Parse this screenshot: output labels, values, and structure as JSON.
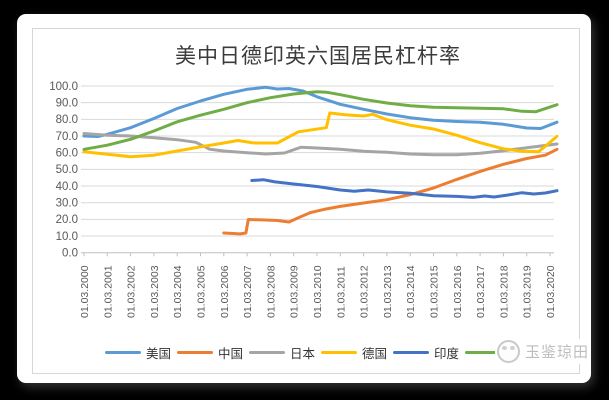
{
  "watermark": {
    "text": "玉鉴琼田",
    "logo": "panda-logo"
  },
  "chart_data": {
    "type": "line",
    "title": "美中日德印英六国居民杠杆率",
    "grid": true,
    "legend_position": "bottom",
    "y_axis": {
      "tick_labels": [
        "100.0",
        "90.0",
        "80.0",
        "70.0",
        "60.0",
        "50.0",
        "40.0",
        "30.0",
        "20.0",
        "10.0",
        "0.0"
      ],
      "tick_values": [
        100,
        90,
        80,
        70,
        60,
        50,
        40,
        30,
        20,
        10,
        0
      ],
      "min": 0,
      "max": 100
    },
    "x_axis": {
      "start_year": 2000,
      "tick_labels": [
        "01.03.2000",
        "01.03.2001",
        "01.03.2002",
        "01.03.2003",
        "01.03.2004",
        "01.03.2005",
        "01.03.2006",
        "01.03.2007",
        "01.03.2008",
        "01.03.2009",
        "01.03.2010",
        "01.03.2011",
        "01.03.2012",
        "01.03.2013",
        "01.03.2014",
        "01.03.2015",
        "01.03.2016",
        "01.03.2017",
        "01.03.2018",
        "01.03.2019",
        "01.03.2020"
      ]
    },
    "series": [
      {
        "id": "us",
        "name": "美国",
        "color": "#5B9BD5",
        "points": [
          [
            2000,
            70
          ],
          [
            2000.6,
            69.7
          ],
          [
            2001,
            71
          ],
          [
            2002,
            75
          ],
          [
            2003,
            80.5
          ],
          [
            2004,
            86.5
          ],
          [
            2005,
            91
          ],
          [
            2006,
            95
          ],
          [
            2007,
            98
          ],
          [
            2007.8,
            99.2
          ],
          [
            2008.3,
            98.2
          ],
          [
            2008.8,
            98.5
          ],
          [
            2009.4,
            97
          ],
          [
            2010,
            93.5
          ],
          [
            2011,
            89
          ],
          [
            2012,
            86
          ],
          [
            2013,
            83.2
          ],
          [
            2014,
            81
          ],
          [
            2015,
            79.5
          ],
          [
            2016,
            78.7
          ],
          [
            2017,
            78.2
          ],
          [
            2018,
            77
          ],
          [
            2019,
            74.8
          ],
          [
            2019.6,
            74.5
          ],
          [
            2020.3,
            78.3
          ]
        ]
      },
      {
        "id": "china",
        "name": "中国",
        "color": "#ED7D31",
        "points": [
          [
            2006,
            11.8
          ],
          [
            2006.7,
            11.3
          ],
          [
            2006.95,
            11.8
          ],
          [
            2007.05,
            19.9
          ],
          [
            2007.8,
            19.6
          ],
          [
            2008.3,
            19.3
          ],
          [
            2008.8,
            18.4
          ],
          [
            2009.2,
            21
          ],
          [
            2009.7,
            24
          ],
          [
            2010.3,
            26
          ],
          [
            2011,
            27.8
          ],
          [
            2012,
            29.8
          ],
          [
            2013,
            31.8
          ],
          [
            2014,
            34.8
          ],
          [
            2015,
            38.8
          ],
          [
            2016,
            44
          ],
          [
            2017,
            48.8
          ],
          [
            2018,
            53
          ],
          [
            2019,
            56.5
          ],
          [
            2019.8,
            58.5
          ],
          [
            2020.3,
            62
          ]
        ]
      },
      {
        "id": "japan",
        "name": "日本",
        "color": "#A5A5A5",
        "points": [
          [
            2000,
            71.5
          ],
          [
            2001,
            70.5
          ],
          [
            2002,
            70
          ],
          [
            2003,
            69
          ],
          [
            2004,
            67.8
          ],
          [
            2004.8,
            66.2
          ],
          [
            2005.4,
            62
          ],
          [
            2006,
            61
          ],
          [
            2007,
            60
          ],
          [
            2007.8,
            59.2
          ],
          [
            2008.6,
            59.8
          ],
          [
            2009.3,
            63.2
          ],
          [
            2010,
            62.8
          ],
          [
            2011,
            62
          ],
          [
            2012,
            60.8
          ],
          [
            2013,
            60.2
          ],
          [
            2014,
            59.2
          ],
          [
            2015,
            58.8
          ],
          [
            2016,
            58.8
          ],
          [
            2017,
            59.6
          ],
          [
            2018,
            61.2
          ],
          [
            2019,
            63
          ],
          [
            2020.3,
            65.2
          ]
        ]
      },
      {
        "id": "germany",
        "name": "德国",
        "color": "#FFC000",
        "points": [
          [
            2000,
            60.5
          ],
          [
            2001,
            59
          ],
          [
            2002,
            57.6
          ],
          [
            2003,
            58.5
          ],
          [
            2004,
            61
          ],
          [
            2005,
            63.5
          ],
          [
            2006,
            65.8
          ],
          [
            2006.6,
            67.3
          ],
          [
            2007.3,
            65.8
          ],
          [
            2008.3,
            65.8
          ],
          [
            2009.2,
            72.5
          ],
          [
            2010.4,
            75
          ],
          [
            2010.55,
            83.8
          ],
          [
            2011.2,
            82.8
          ],
          [
            2012,
            82
          ],
          [
            2012.4,
            83
          ],
          [
            2013,
            79.8
          ],
          [
            2014,
            76.5
          ],
          [
            2015,
            74.2
          ],
          [
            2016,
            70.5
          ],
          [
            2017,
            66
          ],
          [
            2018,
            62.3
          ],
          [
            2018.8,
            60.8
          ],
          [
            2019.5,
            60.5
          ],
          [
            2019.9,
            65
          ],
          [
            2020.3,
            69.8
          ]
        ]
      },
      {
        "id": "india",
        "name": "印度",
        "color": "#4472C4",
        "points": [
          [
            2007.2,
            43.3
          ],
          [
            2007.7,
            43.8
          ],
          [
            2008.2,
            42.5
          ],
          [
            2009,
            41.2
          ],
          [
            2010,
            39.7
          ],
          [
            2011,
            37.6
          ],
          [
            2011.6,
            36.9
          ],
          [
            2012.2,
            37.6
          ],
          [
            2013,
            36.5
          ],
          [
            2014,
            35.7
          ],
          [
            2015,
            34.2
          ],
          [
            2016,
            33.8
          ],
          [
            2016.7,
            33.2
          ],
          [
            2017.2,
            34
          ],
          [
            2017.6,
            33.4
          ],
          [
            2018.2,
            34.6
          ],
          [
            2018.8,
            36
          ],
          [
            2019.3,
            35.2
          ],
          [
            2019.8,
            35.8
          ],
          [
            2020.3,
            37.2
          ]
        ]
      },
      {
        "id": "uk",
        "name": "英国",
        "color": "#70AD47",
        "points": [
          [
            2000,
            62
          ],
          [
            2001,
            64.5
          ],
          [
            2002,
            68
          ],
          [
            2003,
            73
          ],
          [
            2004,
            78.5
          ],
          [
            2005,
            82.5
          ],
          [
            2006,
            86
          ],
          [
            2007,
            90
          ],
          [
            2008,
            93
          ],
          [
            2009,
            95.2
          ],
          [
            2010,
            96.5
          ],
          [
            2010.4,
            96.3
          ],
          [
            2011,
            94.8
          ],
          [
            2012,
            92
          ],
          [
            2013,
            89.8
          ],
          [
            2014,
            88.2
          ],
          [
            2015,
            87.2
          ],
          [
            2016,
            87
          ],
          [
            2017,
            86.6
          ],
          [
            2018,
            86.3
          ],
          [
            2018.8,
            84.8
          ],
          [
            2019.4,
            84.6
          ],
          [
            2020.3,
            88.8
          ]
        ]
      }
    ]
  }
}
